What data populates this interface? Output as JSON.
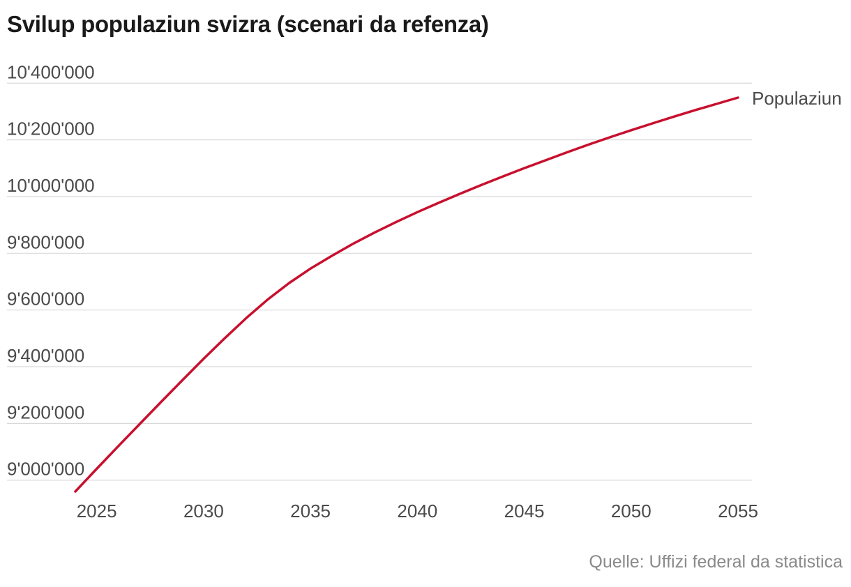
{
  "chart_data": {
    "type": "line",
    "title": "Svilup populaziun svizra (scenari da refenza)",
    "xlabel": "",
    "ylabel": "",
    "xlim": [
      2024,
      2055
    ],
    "ylim": [
      8960000,
      10440000
    ],
    "xticks": [
      2025,
      2030,
      2035,
      2040,
      2045,
      2050,
      2055
    ],
    "xtick_labels": [
      "2025",
      "2030",
      "2035",
      "2040",
      "2045",
      "2050",
      "2055"
    ],
    "yticks": [
      9000000,
      9200000,
      9400000,
      9600000,
      9800000,
      10000000,
      10200000,
      10400000
    ],
    "ytick_labels": [
      "9'000'000",
      "9'200'000",
      "9'400'000",
      "9'600'000",
      "9'800'000",
      "10'000'000",
      "10'200'000",
      "10'400'000"
    ],
    "grid": true,
    "series": [
      {
        "name": "Populaziun",
        "color": "#c8102e",
        "x": [
          2024,
          2025,
          2026,
          2027,
          2028,
          2029,
          2030,
          2031,
          2032,
          2033,
          2034,
          2035,
          2036,
          2037,
          2038,
          2039,
          2040,
          2041,
          2042,
          2043,
          2044,
          2045,
          2046,
          2047,
          2048,
          2049,
          2050,
          2051,
          2052,
          2053,
          2054,
          2055
        ],
        "values": [
          8960000,
          9040000,
          9119000,
          9197000,
          9275000,
          9352000,
          9428000,
          9501000,
          9572000,
          9637000,
          9695000,
          9746000,
          9791000,
          9834000,
          9873000,
          9910000,
          9945000,
          9978000,
          10010000,
          10041000,
          10071000,
          10100000,
          10128000,
          10156000,
          10183000,
          10209000,
          10234000,
          10258000,
          10282000,
          10305000,
          10327000,
          10349000
        ]
      }
    ]
  },
  "source": "Quelle: Uffizi federal da statistica",
  "colors": {
    "line": "#c8102e",
    "grid": "#d9d9d9",
    "text": "#4a4a4a",
    "title": "#1a1a1a",
    "source": "#8a8a8a"
  }
}
